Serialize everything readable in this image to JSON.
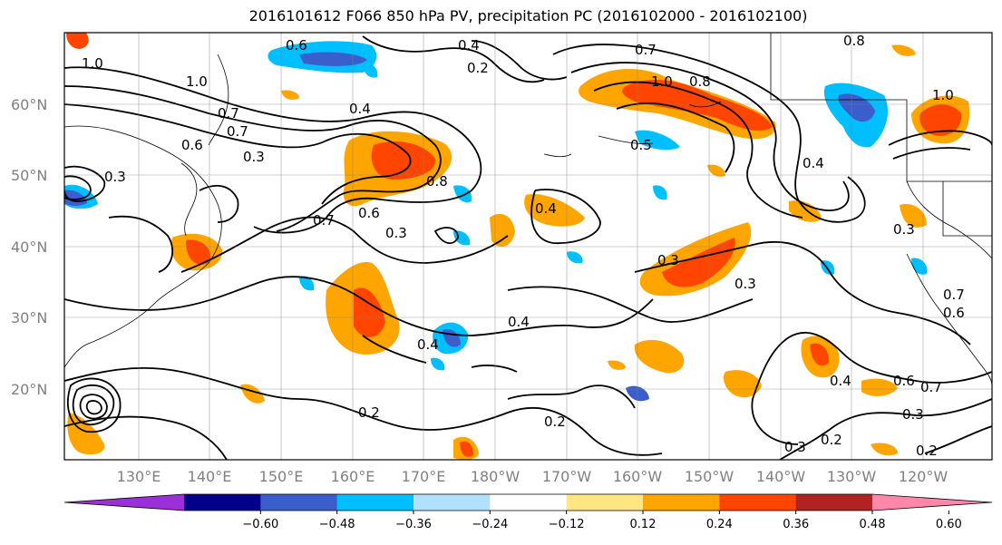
{
  "title": "2016101612 F066 850 hPa PV, precipitation PC (2016102000 - 2016102100)",
  "lat_labels": [
    "60°N",
    "50°N",
    "40°N",
    "30°N",
    "20°N"
  ],
  "lon_labels": [
    "130°E",
    "140°E",
    "150°E",
    "160°E",
    "170°E",
    "180°W",
    "170°W",
    "160°W",
    "150°W",
    "140°W",
    "130°W",
    "120°W"
  ],
  "colorbar": {
    "ticks": [
      "−0.60",
      "−0.48",
      "−0.36",
      "−0.24",
      "−0.12",
      "0.12",
      "0.24",
      "0.36",
      "0.48",
      "0.60"
    ],
    "colors": [
      "#9b30d9",
      "#00008b",
      "#3a5fcd",
      "#00bfff",
      "#b0e2ff",
      "#ffffff",
      "#ffe680",
      "#ffa500",
      "#ff4500",
      "#b22222",
      "#ff88aa"
    ]
  },
  "contour_labels": [
    "0.6",
    "0.4",
    "1.0",
    "1.0",
    "0.7",
    "0.7",
    "0.6",
    "0.4",
    "1.0",
    "0.8",
    "0.8",
    "0.7",
    "0.3",
    "0.7",
    "0.6",
    "0.3",
    "0.4",
    "0.5",
    "0.4",
    "0.8",
    "0.7",
    "0.6",
    "0.3",
    "0.3",
    "0.4",
    "0.4",
    "0.3",
    "0.2",
    "0.4",
    "0.2",
    "0.6",
    "0.7",
    "0.3",
    "0.2",
    "0.3",
    "0.2",
    "0.2",
    "1.0",
    "0.3"
  ]
}
